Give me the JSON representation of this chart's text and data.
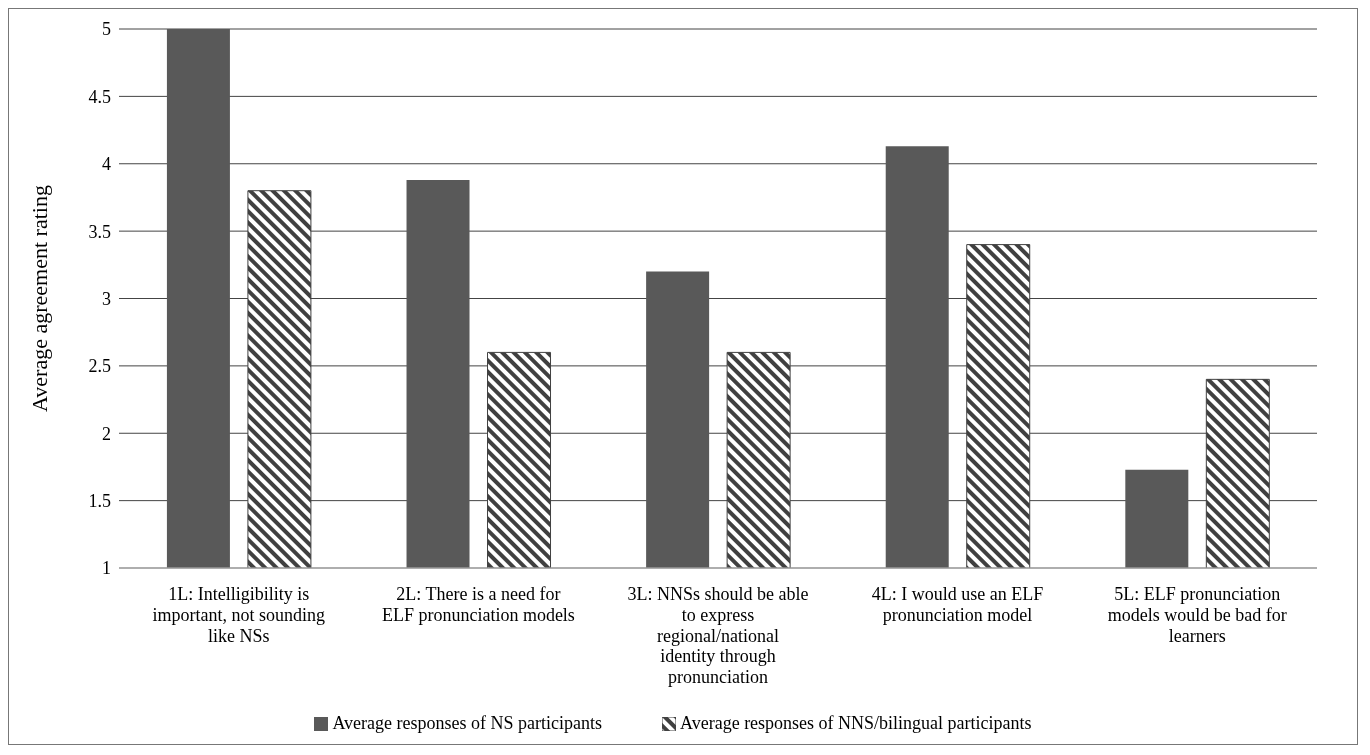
{
  "chart_data": {
    "type": "bar",
    "ylabel": "Average agreement rating",
    "categories": [
      "1L: Intelligibility is important, not sounding like NSs",
      "2L: There is a need for ELF pronunciation models",
      "3L: NNSs should be able to express regional/national identity through pronunciation",
      "4L: I would use an ELF pronunciation model",
      "5L: ELF pronunciation models would be bad for learners"
    ],
    "series": [
      {
        "name": "Average responses of NS participants",
        "color": "#595959",
        "values": [
          5,
          3.88,
          3.2,
          4.13,
          1.73
        ]
      },
      {
        "name": "Average responses of NNS/bilingual participants",
        "color": "#404040",
        "values": [
          3.8,
          2.6,
          2.6,
          3.4,
          2.4
        ]
      }
    ],
    "ylim": [
      1,
      5
    ],
    "yticks": [
      1,
      1.5,
      2,
      2.5,
      3,
      3.5,
      4,
      4.5,
      5
    ],
    "grid": "y",
    "legend": "bottom"
  }
}
